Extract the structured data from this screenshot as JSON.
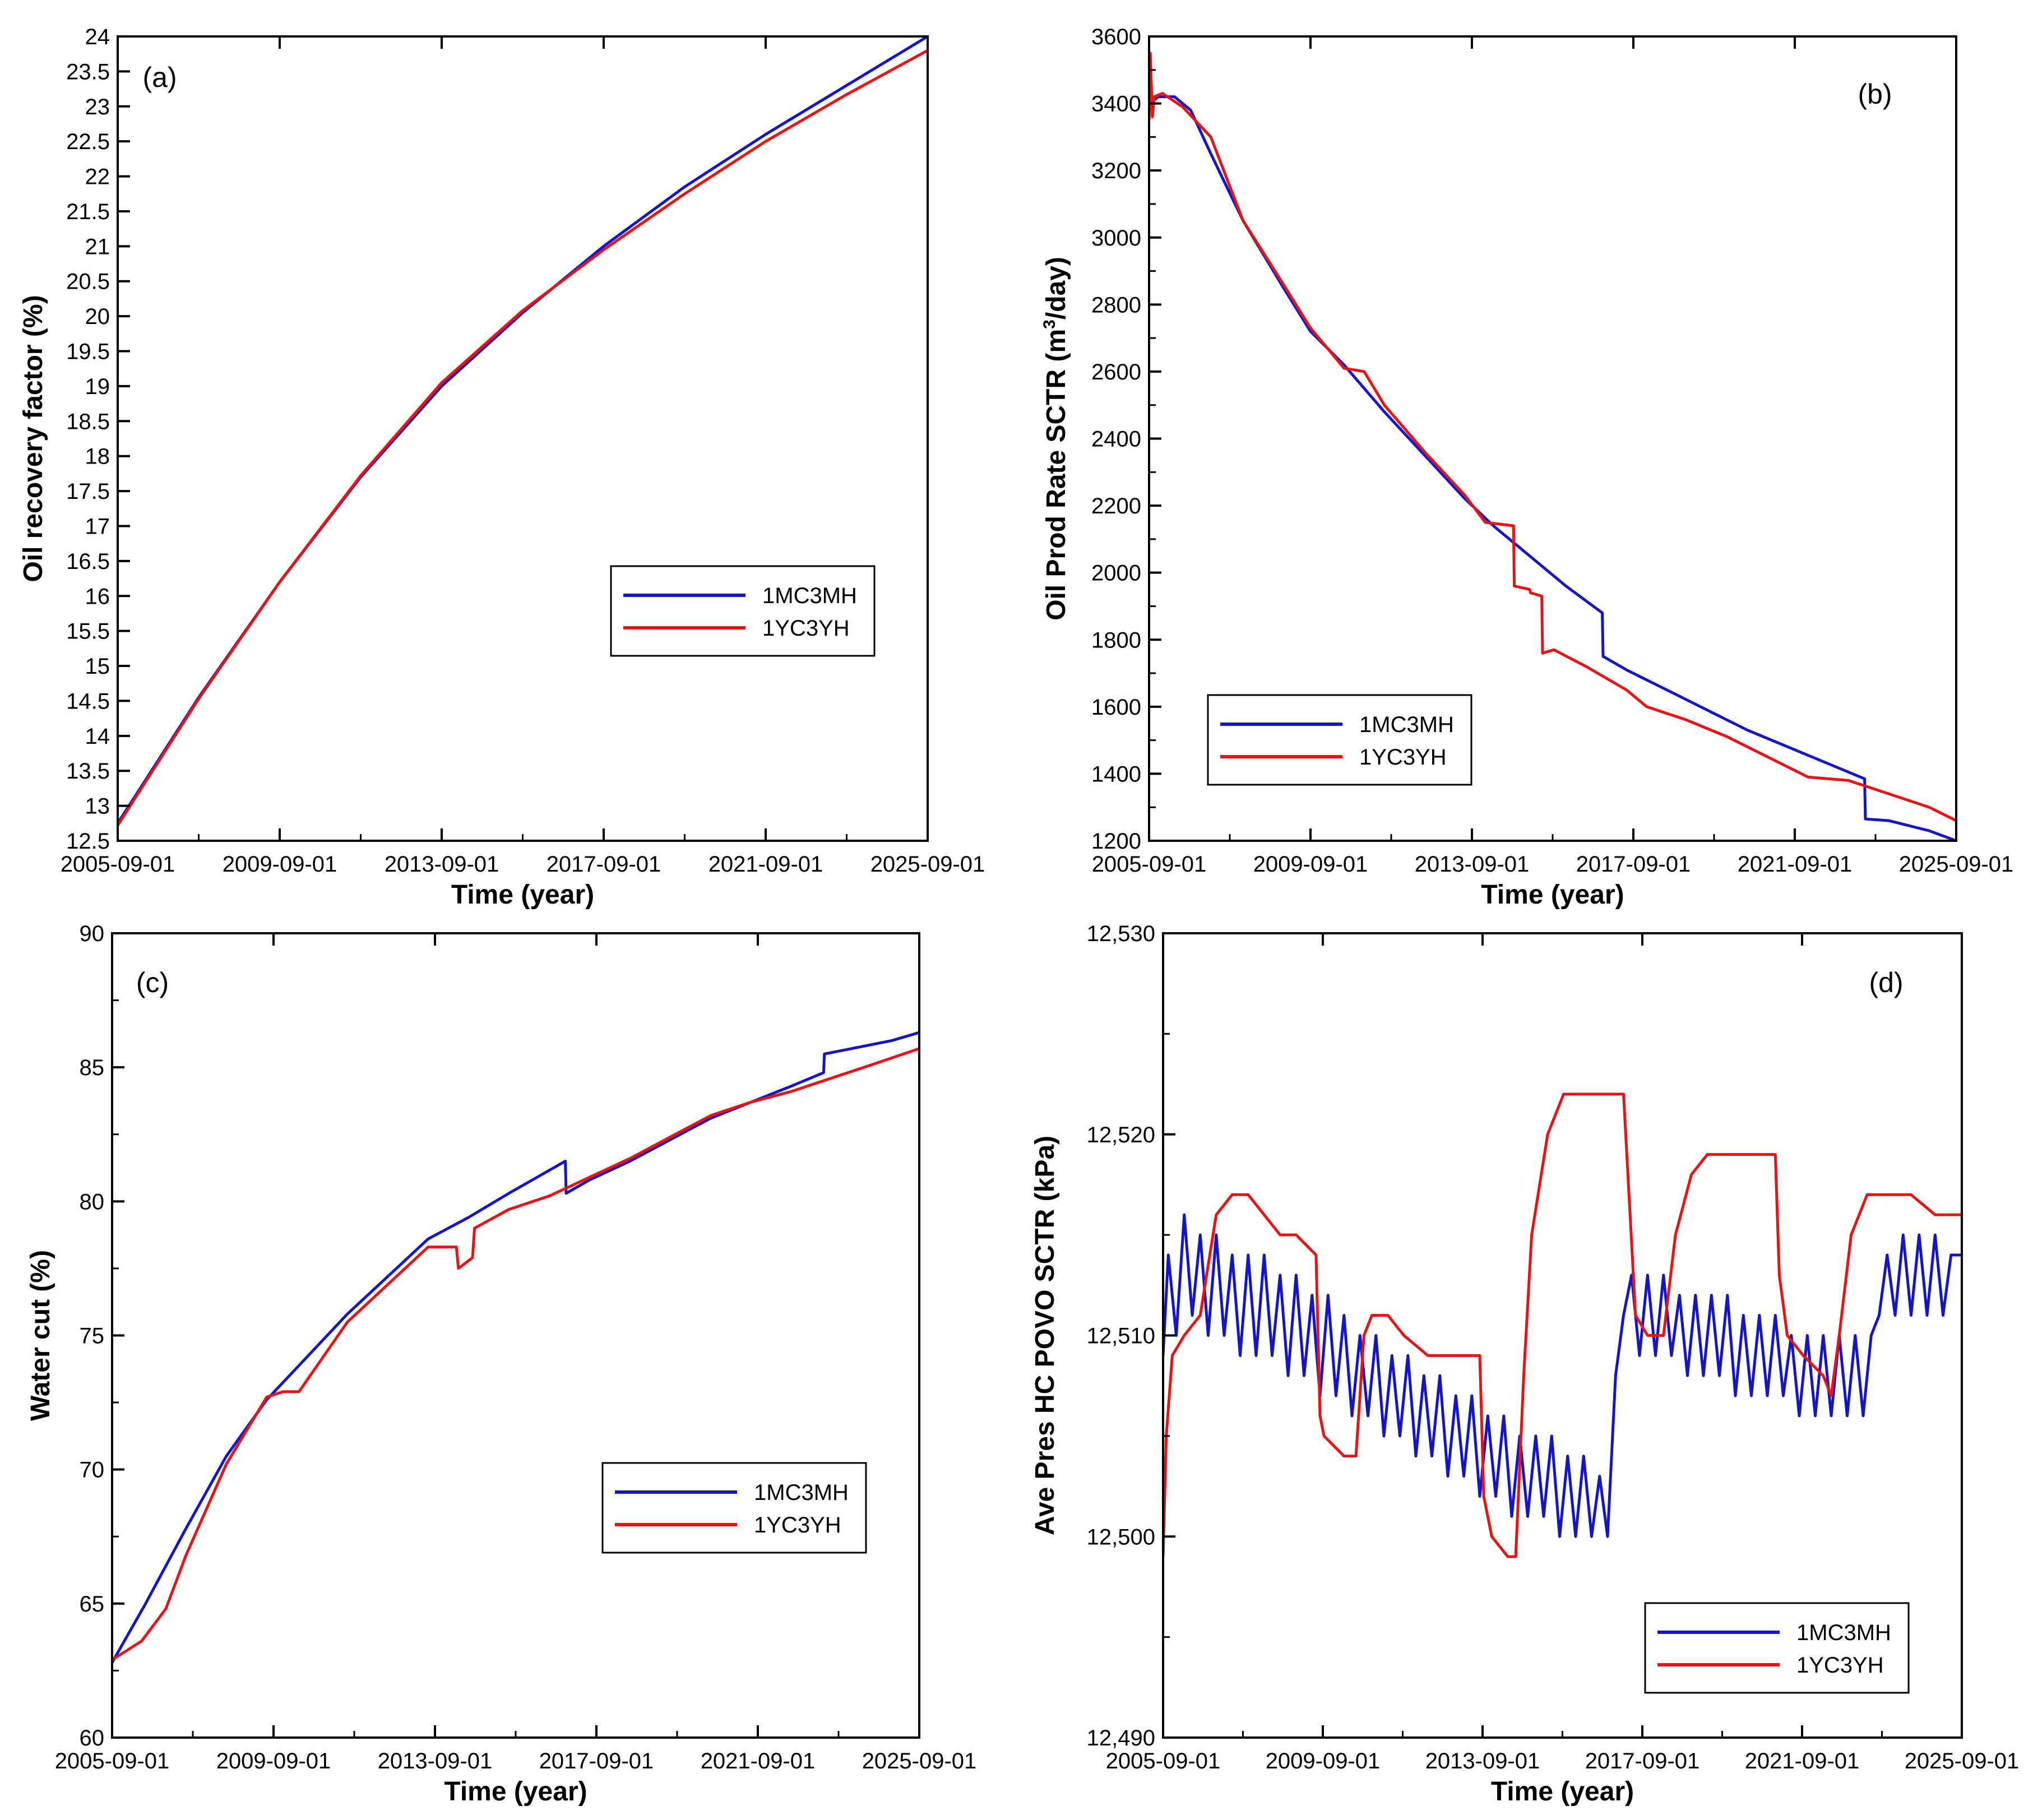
{
  "colors": {
    "series_1": "#1414c8",
    "series_2": "#e61414",
    "axis": "#000000"
  },
  "chart_data": [
    {
      "id": "a",
      "type": "line",
      "panel_label": "(a)",
      "xlabel": "Time (year)",
      "ylabel": "Oil recovery factor (%)",
      "xlim": [
        2005.67,
        2025.67
      ],
      "x_ticks": [
        2005.67,
        2009.67,
        2013.67,
        2017.67,
        2021.67,
        2025.67
      ],
      "x_tick_labels": [
        "2005-09-01",
        "2009-09-01",
        "2013-09-01",
        "2017-09-01",
        "2021-09-01",
        "2025-09-01"
      ],
      "ylim": [
        12.5,
        24
      ],
      "y_ticks": [
        12.5,
        13,
        13.5,
        14,
        14.5,
        15,
        15.5,
        16,
        16.5,
        17,
        17.5,
        18,
        18.5,
        19,
        19.5,
        20,
        20.5,
        21,
        21.5,
        22,
        22.5,
        23,
        23.5,
        24
      ],
      "y_tick_labels": [
        "12.5",
        "13",
        "13.5",
        "14",
        "14.5",
        "15",
        "15.5",
        "16",
        "16.5",
        "17",
        "17.5",
        "18",
        "18.5",
        "19",
        "19.5",
        "20",
        "20.5",
        "21",
        "21.5",
        "22",
        "22.5",
        "23",
        "23.5",
        "24"
      ],
      "legend_position": "center-right",
      "series": [
        {
          "name": "1MC3MH",
          "color_key": "series_1",
          "x": [
            2005.67,
            2007.67,
            2009.67,
            2011.67,
            2013.67,
            2015.67,
            2017.67,
            2019.67,
            2021.67,
            2023.67,
            2025.67
          ],
          "y": [
            12.75,
            14.55,
            16.2,
            17.7,
            19.0,
            20.05,
            21.0,
            21.85,
            22.6,
            23.3,
            24.0
          ]
        },
        {
          "name": "1YC3YH",
          "color_key": "series_2",
          "x": [
            2005.67,
            2007.67,
            2009.67,
            2011.67,
            2013.67,
            2015.67,
            2017.67,
            2019.67,
            2021.67,
            2023.67,
            2025.67
          ],
          "y": [
            12.72,
            14.53,
            16.2,
            17.72,
            19.05,
            20.08,
            20.95,
            21.75,
            22.5,
            23.17,
            23.8
          ]
        }
      ]
    },
    {
      "id": "b",
      "type": "line",
      "panel_label": "(b)",
      "xlabel": "Time (year)",
      "ylabel_main": "Oil Prod Rate SCTR (m",
      "ylabel_sup": "3",
      "ylabel_tail": "/day)",
      "xlim": [
        2005.67,
        2025.67
      ],
      "x_ticks": [
        2005.67,
        2009.67,
        2013.67,
        2017.67,
        2021.67,
        2025.67
      ],
      "x_tick_labels": [
        "2005-09-01",
        "2009-09-01",
        "2013-09-01",
        "2017-09-01",
        "2021-09-01",
        "2025-09-01"
      ],
      "ylim": [
        1200,
        3600
      ],
      "y_ticks": [
        1200,
        1400,
        1600,
        1800,
        2000,
        2200,
        2400,
        2600,
        2800,
        3000,
        3200,
        3400,
        3600
      ],
      "y_tick_labels": [
        "1200",
        "1400",
        "1600",
        "1800",
        "2000",
        "2200",
        "2400",
        "2600",
        "2800",
        "3000",
        "3200",
        "3400",
        "3600"
      ],
      "legend_position": "lower-left",
      "series": [
        {
          "name": "1MC3MH",
          "color_key": "series_1",
          "x": [
            2005.67,
            2005.9,
            2006.3,
            2006.7,
            2007.2,
            2008,
            2009,
            2009.67,
            2010.5,
            2011.5,
            2012.5,
            2013.5,
            2014.2,
            2015,
            2016,
            2016.9,
            2016.92,
            2017.5,
            2018.5,
            2019.5,
            2020.5,
            2021.5,
            2022.5,
            2023.4,
            2023.42,
            2024,
            2025,
            2025.67
          ],
          "y": [
            3400,
            3420,
            3420,
            3380,
            3250,
            3050,
            2850,
            2720,
            2620,
            2480,
            2350,
            2220,
            2140,
            2060,
            1960,
            1880,
            1750,
            1710,
            1650,
            1590,
            1530,
            1480,
            1430,
            1385,
            1265,
            1260,
            1230,
            1200
          ]
        },
        {
          "name": "1YC3YH",
          "color_key": "series_2",
          "x": [
            2005.67,
            2005.7,
            2005.75,
            2005.8,
            2006,
            2006.5,
            2007.2,
            2008,
            2009,
            2009.67,
            2010.5,
            2011,
            2011.5,
            2012.5,
            2013.5,
            2014,
            2014.7,
            2014.72,
            2015.1,
            2015.12,
            2015.4,
            2015.42,
            2015.7,
            2016.5,
            2017.5,
            2018,
            2019,
            2020,
            2021,
            2022,
            2023,
            2024,
            2025,
            2025.67
          ],
          "y": [
            3350,
            3550,
            3360,
            3420,
            3430,
            3390,
            3300,
            3050,
            2860,
            2730,
            2610,
            2600,
            2500,
            2360,
            2230,
            2150,
            2140,
            1960,
            1950,
            1940,
            1930,
            1760,
            1770,
            1720,
            1650,
            1600,
            1560,
            1510,
            1450,
            1390,
            1380,
            1340,
            1300,
            1260
          ]
        }
      ]
    },
    {
      "id": "c",
      "type": "line",
      "panel_label": "(c)",
      "xlabel": "Time (year)",
      "ylabel": "Water cut (%)",
      "xlim": [
        2005.67,
        2025.67
      ],
      "x_ticks": [
        2005.67,
        2009.67,
        2013.67,
        2017.67,
        2021.67,
        2025.67
      ],
      "x_tick_labels": [
        "2005-09-01",
        "2009-09-01",
        "2013-09-01",
        "2017-09-01",
        "2021-09-01",
        "2025-09-01"
      ],
      "ylim": [
        60,
        90
      ],
      "y_ticks": [
        60,
        65,
        70,
        75,
        80,
        85,
        90
      ],
      "y_tick_labels": [
        "60",
        "65",
        "70",
        "75",
        "80",
        "85",
        "90"
      ],
      "legend_position": "lower-right",
      "series": [
        {
          "name": "1MC3MH",
          "color_key": "series_1",
          "x": [
            2005.67,
            2006.5,
            2007.5,
            2008.5,
            2009.5,
            2010.5,
            2011.5,
            2012.5,
            2013.5,
            2014.5,
            2015.5,
            2016.9,
            2016.92,
            2017.5,
            2018.5,
            2019.5,
            2020.5,
            2021.5,
            2022.5,
            2023.3,
            2023.32,
            2024,
            2025,
            2025.67
          ],
          "y": [
            62.8,
            65.0,
            67.8,
            70.5,
            72.6,
            74.2,
            75.8,
            77.2,
            78.6,
            79.4,
            80.3,
            81.5,
            80.3,
            80.8,
            81.5,
            82.3,
            83.1,
            83.7,
            84.3,
            84.8,
            85.5,
            85.7,
            86.0,
            86.3
          ]
        },
        {
          "name": "1YC3YH",
          "color_key": "series_2",
          "x": [
            2005.67,
            2006.4,
            2007,
            2007.5,
            2008.5,
            2009.5,
            2009.9,
            2010.3,
            2011.5,
            2012.5,
            2013.5,
            2014.2,
            2014.25,
            2014.6,
            2014.65,
            2015.5,
            2016.5,
            2017.5,
            2018.5,
            2019.5,
            2020.5,
            2021.5,
            2022.5,
            2023.5,
            2024.5,
            2025.67
          ],
          "y": [
            62.9,
            63.6,
            64.8,
            66.8,
            70.2,
            72.7,
            72.9,
            72.9,
            75.5,
            76.9,
            78.3,
            78.3,
            77.5,
            77.9,
            79.0,
            79.7,
            80.2,
            80.9,
            81.6,
            82.4,
            83.2,
            83.7,
            84.1,
            84.6,
            85.1,
            85.7
          ]
        }
      ]
    },
    {
      "id": "d",
      "type": "line",
      "panel_label": "(d)",
      "xlabel": "Time (year)",
      "ylabel": "Ave Pres HC POVO SCTR (kPa)",
      "xlim": [
        2005.67,
        2025.67
      ],
      "x_ticks": [
        2005.67,
        2009.67,
        2013.67,
        2017.67,
        2021.67,
        2025.67
      ],
      "x_tick_labels": [
        "2005-09-01",
        "2009-09-01",
        "2013-09-01",
        "2017-09-01",
        "2021-09-01",
        "2025-09-01"
      ],
      "ylim": [
        12490,
        12530
      ],
      "y_ticks": [
        12490,
        12500,
        12510,
        12520,
        12530
      ],
      "y_tick_labels": [
        "12,490",
        "12,500",
        "12,510",
        "12,520",
        "12,530"
      ],
      "legend_position": "lower-right",
      "series": [
        {
          "name": "1MC3MH",
          "color_key": "series_1",
          "x": [
            2005.67,
            2005.8,
            2006.0,
            2006.2,
            2006.4,
            2006.6,
            2006.8,
            2007.0,
            2007.2,
            2007.4,
            2007.6,
            2007.8,
            2008.0,
            2008.2,
            2008.4,
            2008.6,
            2008.8,
            2009.0,
            2009.2,
            2009.4,
            2009.6,
            2009.8,
            2010.0,
            2010.2,
            2010.4,
            2010.6,
            2010.8,
            2011.0,
            2011.2,
            2011.4,
            2011.6,
            2011.8,
            2012.0,
            2012.2,
            2012.4,
            2012.6,
            2012.8,
            2013.0,
            2013.2,
            2013.4,
            2013.6,
            2013.8,
            2014.0,
            2014.2,
            2014.4,
            2014.6,
            2014.8,
            2015.0,
            2015.2,
            2015.4,
            2015.6,
            2015.8,
            2016.0,
            2016.2,
            2016.4,
            2016.6,
            2016.8,
            2017.0,
            2017.2,
            2017.4,
            2017.6,
            2017.8,
            2018.0,
            2018.2,
            2018.4,
            2018.6,
            2018.8,
            2019.0,
            2019.2,
            2019.4,
            2019.6,
            2019.8,
            2020.0,
            2020.2,
            2020.4,
            2020.6,
            2020.8,
            2021.0,
            2021.2,
            2021.4,
            2021.6,
            2021.8,
            2022.0,
            2022.2,
            2022.4,
            2022.6,
            2022.8,
            2023.0,
            2023.2,
            2023.4,
            2023.6,
            2023.8,
            2024.0,
            2024.2,
            2024.4,
            2024.6,
            2024.8,
            2025.0,
            2025.2,
            2025.4,
            2025.67
          ],
          "y": [
            12509,
            12514,
            12510,
            12516,
            12511,
            12515,
            12510,
            12515,
            12510,
            12514,
            12509,
            12514,
            12509,
            12514,
            12509,
            12513,
            12508,
            12513,
            12508,
            12512,
            12507,
            12512,
            12507,
            12511,
            12506,
            12510,
            12506,
            12510,
            12505,
            12509,
            12505,
            12509,
            12504,
            12508,
            12504,
            12508,
            12503,
            12507,
            12503,
            12507,
            12502,
            12506,
            12502,
            12506,
            12501,
            12505,
            12501,
            12505,
            12501,
            12505,
            12500,
            12504,
            12500,
            12504,
            12500,
            12503,
            12500,
            12508,
            12511,
            12513,
            12509,
            12513,
            12509,
            12513,
            12509,
            12512,
            12508,
            12512,
            12508,
            12512,
            12508,
            12512,
            12507,
            12511,
            12507,
            12511,
            12507,
            12511,
            12507,
            12510,
            12506,
            12510,
            12506,
            12510,
            12506,
            12510,
            12506,
            12510,
            12506,
            12510,
            12511,
            12514,
            12511,
            12515,
            12511,
            12515,
            12511,
            12515,
            12511,
            12514,
            12514
          ]
        },
        {
          "name": "1YC3YH",
          "color_key": "series_2",
          "x": [
            2005.67,
            2005.75,
            2005.9,
            2006.2,
            2006.6,
            2007.0,
            2007.4,
            2007.8,
            2008.2,
            2008.6,
            2009.0,
            2009.5,
            2009.6,
            2009.7,
            2010.2,
            2010.5,
            2010.7,
            2010.9,
            2011.3,
            2011.7,
            2012.3,
            2012.9,
            2013.6,
            2013.7,
            2013.9,
            2014.3,
            2014.5,
            2014.7,
            2014.9,
            2015.3,
            2015.7,
            2016.1,
            2016.5,
            2016.9,
            2017.0,
            2017.2,
            2017.5,
            2017.8,
            2018.0,
            2018.2,
            2018.5,
            2018.9,
            2019.3,
            2019.9,
            2020.5,
            2021.0,
            2021.1,
            2021.3,
            2021.7,
            2022.2,
            2022.4,
            2022.6,
            2022.9,
            2023.3,
            2023.8,
            2024.4,
            2025.0,
            2025.67
          ],
          "y": [
            12499,
            12505,
            12509,
            12510,
            12511,
            12516,
            12517,
            12517,
            12516,
            12515,
            12515,
            12514,
            12506,
            12505,
            12504,
            12504,
            12510,
            12511,
            12511,
            12510,
            12509,
            12509,
            12509,
            12502,
            12500,
            12499,
            12499,
            12508,
            12515,
            12520,
            12522,
            12522,
            12522,
            12522,
            12522,
            12522,
            12511,
            12510,
            12510,
            12510,
            12515,
            12518,
            12519,
            12519,
            12519,
            12519,
            12513,
            12510,
            12509,
            12508,
            12507,
            12510,
            12515,
            12517,
            12517,
            12517,
            12516,
            12516
          ]
        }
      ]
    }
  ]
}
